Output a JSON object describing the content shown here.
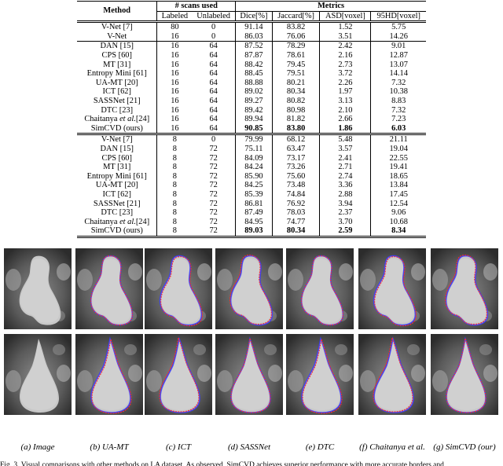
{
  "table": {
    "headers": {
      "method": "Method",
      "scans_used": "# scans used",
      "metrics": "Metrics",
      "labeled": "Labeled",
      "unlabeled": "Unlabeled",
      "dice": "Dice[%]",
      "jaccard": "Jaccard[%]",
      "asd": "ASD[voxel]",
      "hd95": "95HD[voxel]"
    },
    "groups": [
      {
        "rows": [
          {
            "method": "V-Net [7]",
            "labeled": "80",
            "unlabeled": "0",
            "dice": "91.14",
            "jaccard": "83.82",
            "asd": "1.52",
            "hd95": "5.75"
          },
          {
            "method": "V-Net",
            "labeled": "16",
            "unlabeled": "0",
            "dice": "86.03",
            "jaccard": "76.06",
            "asd": "3.51",
            "hd95": "14.26"
          }
        ]
      },
      {
        "rows": [
          {
            "method": "DAN [15]",
            "labeled": "16",
            "unlabeled": "64",
            "dice": "87.52",
            "jaccard": "78.29",
            "asd": "2.42",
            "hd95": "9.01"
          },
          {
            "method": "CPS [60]",
            "labeled": "16",
            "unlabeled": "64",
            "dice": "87.87",
            "jaccard": "78.61",
            "asd": "2.16",
            "hd95": "12.87"
          },
          {
            "method": "MT [31]",
            "labeled": "16",
            "unlabeled": "64",
            "dice": "88.42",
            "jaccard": "79.45",
            "asd": "2.73",
            "hd95": "13.07"
          },
          {
            "method": "Entropy Mini [61]",
            "labeled": "16",
            "unlabeled": "64",
            "dice": "88.45",
            "jaccard": "79.51",
            "asd": "3.72",
            "hd95": "14.14"
          },
          {
            "method": "UA-MT [20]",
            "labeled": "16",
            "unlabeled": "64",
            "dice": "88.88",
            "jaccard": "80.21",
            "asd": "2.26",
            "hd95": "7.32"
          },
          {
            "method": "ICT [62]",
            "labeled": "16",
            "unlabeled": "64",
            "dice": "89.02",
            "jaccard": "80.34",
            "asd": "1.97",
            "hd95": "10.38"
          },
          {
            "method": "SASSNet [21]",
            "labeled": "16",
            "unlabeled": "64",
            "dice": "89.27",
            "jaccard": "80.82",
            "asd": "3.13",
            "hd95": "8.83"
          },
          {
            "method": "DTC [23]",
            "labeled": "16",
            "unlabeled": "64",
            "dice": "89.42",
            "jaccard": "80.98",
            "asd": "2.10",
            "hd95": "7.32"
          },
          {
            "method_pre": "Chaitanya ",
            "method_em": "et al.",
            "method_post": "[24]",
            "labeled": "16",
            "unlabeled": "64",
            "dice": "89.94",
            "jaccard": "81.82",
            "asd": "2.66",
            "hd95": "7.23"
          },
          {
            "method": "SimCVD (ours)",
            "labeled": "16",
            "unlabeled": "64",
            "dice": "90.85",
            "jaccard": "83.80",
            "asd": "1.86",
            "hd95": "6.03",
            "bold": true
          }
        ]
      },
      {
        "rows": [
          {
            "method": "V-Net [7]",
            "labeled": "8",
            "unlabeled": "0",
            "dice": "79.99",
            "jaccard": "68.12",
            "asd": "5.48",
            "hd95": "21.11"
          },
          {
            "method": "DAN [15]",
            "labeled": "8",
            "unlabeled": "72",
            "dice": "75.11",
            "jaccard": "63.47",
            "asd": "3.57",
            "hd95": "19.04"
          },
          {
            "method": "CPS [60]",
            "labeled": "8",
            "unlabeled": "72",
            "dice": "84.09",
            "jaccard": "73.17",
            "asd": "2.41",
            "hd95": "22.55"
          },
          {
            "method": "MT [31]",
            "labeled": "8",
            "unlabeled": "72",
            "dice": "84.24",
            "jaccard": "73.26",
            "asd": "2.71",
            "hd95": "19.41"
          },
          {
            "method": "Entropy Mini [61]",
            "labeled": "8",
            "unlabeled": "72",
            "dice": "85.90",
            "jaccard": "75.60",
            "asd": "2.74",
            "hd95": "18.65"
          },
          {
            "method": "UA-MT [20]",
            "labeled": "8",
            "unlabeled": "72",
            "dice": "84.25",
            "jaccard": "73.48",
            "asd": "3.36",
            "hd95": "13.84"
          },
          {
            "method": "ICT [62]",
            "labeled": "8",
            "unlabeled": "72",
            "dice": "85.39",
            "jaccard": "74.84",
            "asd": "2.88",
            "hd95": "17.45"
          },
          {
            "method": "SASSNet [21]",
            "labeled": "8",
            "unlabeled": "72",
            "dice": "86.81",
            "jaccard": "76.92",
            "asd": "3.94",
            "hd95": "12.54"
          },
          {
            "method": "DTC [23]",
            "labeled": "8",
            "unlabeled": "72",
            "dice": "87.49",
            "jaccard": "78.03",
            "asd": "2.37",
            "hd95": "9.06"
          },
          {
            "method_pre": "Chaitanya ",
            "method_em": "et al.",
            "method_post": "[24]",
            "labeled": "8",
            "unlabeled": "72",
            "dice": "84.95",
            "jaccard": "74.77",
            "asd": "3.70",
            "hd95": "10.68"
          },
          {
            "method": "SimCVD (ours)",
            "labeled": "8",
            "unlabeled": "72",
            "dice": "89.03",
            "jaccard": "80.34",
            "asd": "2.59",
            "hd95": "8.34",
            "bold": true
          }
        ]
      }
    ]
  },
  "figure": {
    "captions": [
      "(a) Image",
      "(b) UA-MT",
      "(c) ICT",
      "(d) SASSNet",
      "(e) DTC",
      "(f) Chaitanya et al.",
      "(g) SimCVD (our)"
    ],
    "contour_colors": {
      "ground_truth": "#3a3aff",
      "prediction": "#ff2a2a"
    },
    "caption_text": "Fig. 3.   Visual comparisons with other methods on LA dataset. As observed, SimCVD achieves superior performance with more accurate borders and"
  }
}
